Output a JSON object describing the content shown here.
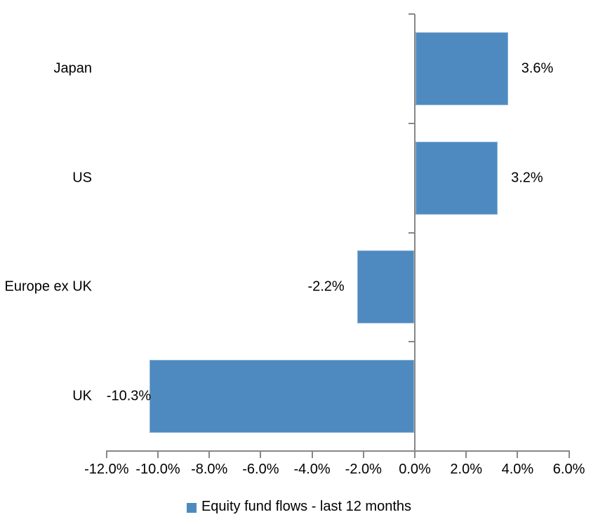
{
  "chart_data": {
    "type": "bar",
    "orientation": "horizontal",
    "categories": [
      "Japan",
      "US",
      "Europe ex UK",
      "UK"
    ],
    "values": [
      3.6,
      3.2,
      -2.2,
      -10.3
    ],
    "data_labels": [
      "3.6%",
      "3.2%",
      "-2.2%",
      "-10.3%"
    ],
    "series": [
      {
        "name": "Equity fund flows - last 12 months",
        "values": [
          3.6,
          3.2,
          -2.2,
          -10.3
        ]
      }
    ],
    "title": "",
    "xlabel": "",
    "ylabel": "",
    "xlim": [
      -12,
      6
    ],
    "x_ticks": [
      -12,
      -10,
      -8,
      -6,
      -4,
      -2,
      0,
      2,
      4,
      6
    ],
    "x_tick_labels": [
      "-12.0%",
      "-10.0%",
      "-8.0%",
      "-6.0%",
      "-4.0%",
      "-2.0%",
      "0.0%",
      "2.0%",
      "4.0%",
      "6.0%"
    ],
    "grid": false,
    "legend_position": "bottom",
    "bar_color": "#4e8ac0",
    "axis_color": "#878787",
    "text_color": "#000000"
  },
  "legend": {
    "label": "Equity fund flows - last 12 months"
  }
}
